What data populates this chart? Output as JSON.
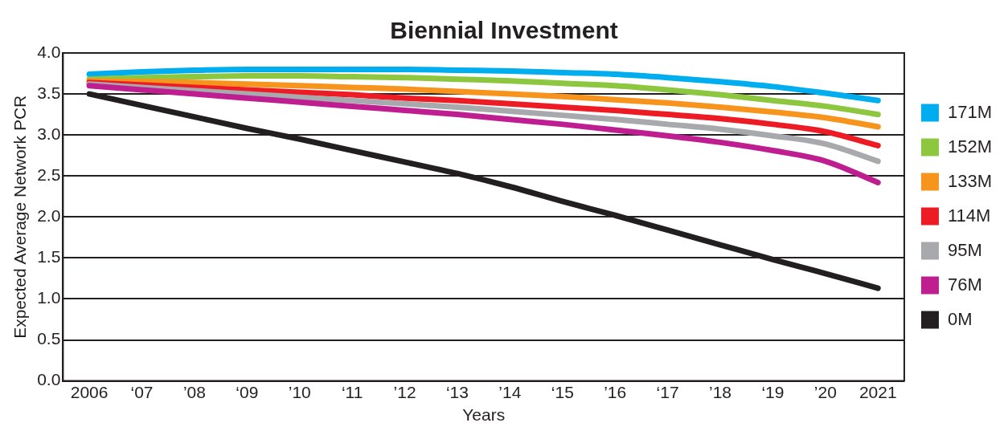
{
  "chart_data": {
    "type": "line",
    "title": "Biennial Investment",
    "xlabel": "Years",
    "ylabel": "Expected Average Network PCR",
    "categories": [
      "2006",
      "‘07",
      "’08",
      "‘09",
      "’10",
      "‘11",
      "’12",
      "‘13",
      "’14",
      "‘15",
      "’16",
      "‘17",
      "’18",
      "‘19",
      "’20",
      "2021"
    ],
    "ylim": [
      0,
      4
    ],
    "yticks": [
      {
        "value": 0,
        "label": "0.0"
      },
      0.5,
      {
        "value": 1,
        "label": "1.0"
      },
      1.5,
      {
        "value": 2,
        "label": "2.0"
      },
      2.5,
      {
        "value": 3,
        "label": "3.0"
      },
      3.5,
      {
        "value": 4,
        "label": "4.0"
      }
    ],
    "grid": "y",
    "legend": "right",
    "line_style": "solid",
    "series": [
      {
        "name": "171M",
        "color": "#00aeef",
        "values": [
          3.74,
          3.77,
          3.79,
          3.8,
          3.8,
          3.8,
          3.8,
          3.79,
          3.78,
          3.76,
          3.74,
          3.7,
          3.65,
          3.59,
          3.51,
          3.42
        ]
      },
      {
        "name": "152M",
        "color": "#8dc63f",
        "values": [
          3.68,
          3.7,
          3.71,
          3.72,
          3.72,
          3.71,
          3.7,
          3.68,
          3.66,
          3.63,
          3.6,
          3.55,
          3.49,
          3.42,
          3.35,
          3.25
        ]
      },
      {
        "name": "133M",
        "color": "#f7941d",
        "values": [
          3.66,
          3.65,
          3.64,
          3.62,
          3.6,
          3.58,
          3.56,
          3.53,
          3.5,
          3.47,
          3.43,
          3.39,
          3.34,
          3.28,
          3.21,
          3.1
        ]
      },
      {
        "name": "114M",
        "color": "#ed1c24",
        "values": [
          3.64,
          3.61,
          3.58,
          3.55,
          3.52,
          3.49,
          3.45,
          3.42,
          3.38,
          3.34,
          3.3,
          3.25,
          3.2,
          3.13,
          3.04,
          2.87
        ]
      },
      {
        "name": "95M",
        "color": "#a7a9ac",
        "values": [
          3.62,
          3.58,
          3.54,
          3.5,
          3.46,
          3.42,
          3.38,
          3.34,
          3.29,
          3.24,
          3.19,
          3.13,
          3.07,
          2.99,
          2.89,
          2.68
        ]
      },
      {
        "name": "76M",
        "color": "#be1e8f",
        "values": [
          3.6,
          3.55,
          3.5,
          3.45,
          3.4,
          3.35,
          3.3,
          3.25,
          3.19,
          3.13,
          3.06,
          2.99,
          2.91,
          2.81,
          2.68,
          2.42
        ]
      },
      {
        "name": "0M",
        "color": "#231f20",
        "values": [
          3.5,
          3.36,
          3.22,
          3.08,
          2.95,
          2.81,
          2.67,
          2.53,
          2.37,
          2.19,
          2.02,
          1.84,
          1.66,
          1.48,
          1.31,
          1.13
        ]
      }
    ]
  }
}
